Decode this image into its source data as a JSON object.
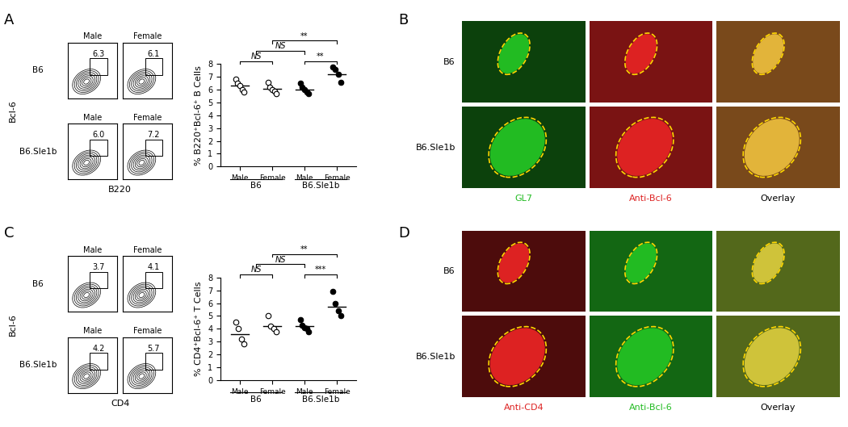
{
  "panel_letters": [
    "A",
    "B",
    "C",
    "D"
  ],
  "chart_data": [
    {
      "type": "dot",
      "ylabel": "% B220⁺Bcl-6⁺ B Cells",
      "ylim": [
        0,
        8
      ],
      "yticks": [
        0,
        1,
        2,
        3,
        4,
        5,
        6,
        7,
        8
      ],
      "categories": [
        "Male",
        "Female",
        "Male",
        "Female"
      ],
      "category_groups": [
        "B6",
        "B6",
        "B6.Sle1b",
        "B6.Sle1b"
      ],
      "values": [
        [
          6.8,
          6.5,
          6.3,
          6.0,
          5.8
        ],
        [
          6.6,
          6.2,
          6.0,
          5.9,
          5.7
        ],
        [
          6.5,
          6.2,
          6.0,
          5.8,
          5.7
        ],
        [
          7.8,
          7.6,
          7.2,
          6.6
        ]
      ],
      "means": [
        6.3,
        6.1,
        6.0,
        7.2
      ],
      "colors": [
        "white",
        "white",
        "black",
        "black"
      ],
      "marker": "circle",
      "comparisons": [
        {
          "from": [
            0
          ],
          "to": [
            1
          ],
          "label": "NS"
        },
        {
          "from": [
            2
          ],
          "to": [
            3
          ],
          "label": "**"
        },
        {
          "from": [
            0,
            1
          ],
          "to": [
            2
          ],
          "label": "NS"
        },
        {
          "from": [
            1
          ],
          "to": [
            3
          ],
          "label": "**"
        }
      ]
    },
    {
      "type": "dot",
      "ylabel": "% CD4⁺Bcl-6⁺ T Cells",
      "ylim": [
        0,
        8
      ],
      "yticks": [
        0,
        1,
        2,
        3,
        4,
        5,
        6,
        7,
        8
      ],
      "categories": [
        "Male",
        "Female",
        "Male",
        "Female"
      ],
      "category_groups": [
        "B6",
        "B6",
        "B6.Sle1b",
        "B6.Sle1b"
      ],
      "values": [
        [
          4.5,
          4.0,
          3.2,
          2.8
        ],
        [
          5.0,
          4.2,
          4.0,
          3.8
        ],
        [
          4.7,
          4.3,
          4.1,
          4.0,
          3.8
        ],
        [
          6.9,
          6.0,
          5.4,
          5.0
        ]
      ],
      "means": [
        3.6,
        4.2,
        4.2,
        5.7
      ],
      "colors": [
        "white",
        "white",
        "black",
        "black"
      ],
      "marker": "circle",
      "comparisons": [
        {
          "from": [
            0
          ],
          "to": [
            1
          ],
          "label": "NS"
        },
        {
          "from": [
            2
          ],
          "to": [
            3
          ],
          "label": "***"
        },
        {
          "from": [
            0,
            1
          ],
          "to": [
            2
          ],
          "label": "NS"
        },
        {
          "from": [
            1
          ],
          "to": [
            3
          ],
          "label": "**"
        }
      ]
    }
  ],
  "flow_panels": [
    {
      "xlabel": "B220",
      "ylabel": "Bcl-6",
      "rows": [
        "B6",
        "B6.Sle1b"
      ],
      "columns": [
        "Male",
        "Female"
      ],
      "gate_percent": [
        [
          6.3,
          6.1
        ],
        [
          6.0,
          7.2
        ]
      ]
    },
    {
      "xlabel": "CD4",
      "ylabel": "Bcl-6",
      "rows": [
        "B6",
        "B6.Sle1b"
      ],
      "columns": [
        "Male",
        "Female"
      ],
      "gate_percent": [
        [
          3.7,
          4.1
        ],
        [
          4.2,
          5.7
        ]
      ]
    }
  ],
  "image_panels": [
    {
      "rows": [
        "B6",
        "B6.Sle1b"
      ],
      "channels": [
        {
          "label": "GL7",
          "color": "#22bb22"
        },
        {
          "label": "Anti-Bcl-6",
          "color": "#dd2222"
        },
        {
          "label": "Overlay",
          "color": "#000000"
        }
      ]
    },
    {
      "rows": [
        "B6",
        "B6.Sle1b"
      ],
      "channels": [
        {
          "label": "Anti-CD4",
          "color": "#dd2222"
        },
        {
          "label": "Anti-Bcl-6",
          "color": "#22bb22"
        },
        {
          "label": "Overlay",
          "color": "#000000"
        }
      ]
    }
  ]
}
